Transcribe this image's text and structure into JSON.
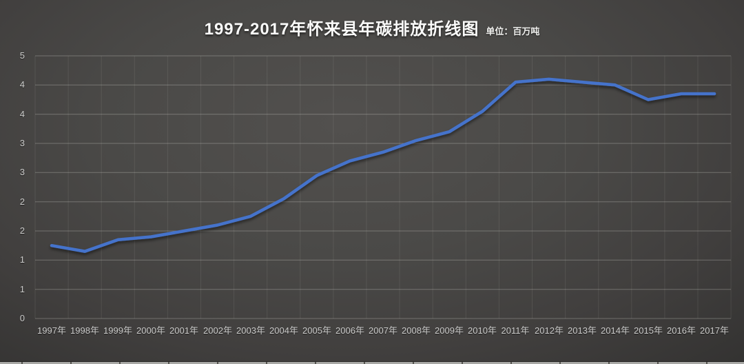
{
  "header": {
    "title": "1997-2017年怀来县年碳排放折线图",
    "unit_label": "单位：百万吨"
  },
  "chart_data": {
    "type": "line",
    "title": "1997-2017年怀来县年碳排放折线图",
    "unit": "百万吨",
    "categories": [
      "1997年",
      "1998年",
      "1999年",
      "2000年",
      "2001年",
      "2002年",
      "2003年",
      "2004年",
      "2005年",
      "2006年",
      "2007年",
      "2008年",
      "2009年",
      "2010年",
      "2011年",
      "2012年",
      "2013年",
      "2014年",
      "2015年",
      "2016年",
      "2017年"
    ],
    "values": [
      1.25,
      1.15,
      1.35,
      1.4,
      1.5,
      1.6,
      1.75,
      2.05,
      2.45,
      2.7,
      2.85,
      3.05,
      3.2,
      3.55,
      4.05,
      4.1,
      4.05,
      4.0,
      3.75,
      3.85,
      3.85
    ],
    "ylim": [
      0,
      4.5
    ],
    "y_tick_step": 0.5,
    "y_tick_labels_displayed": [
      "5",
      "4",
      "4",
      "3",
      "3",
      "2",
      "2",
      "1",
      "1",
      "0"
    ],
    "xlabel": "",
    "ylabel": "",
    "grid": true,
    "legend": "none",
    "line_color": "#4573CB",
    "gridline_color": "rgba(224,224,218,0.30)",
    "minor_gridline_color": "rgba(224,224,218,0.10)"
  }
}
